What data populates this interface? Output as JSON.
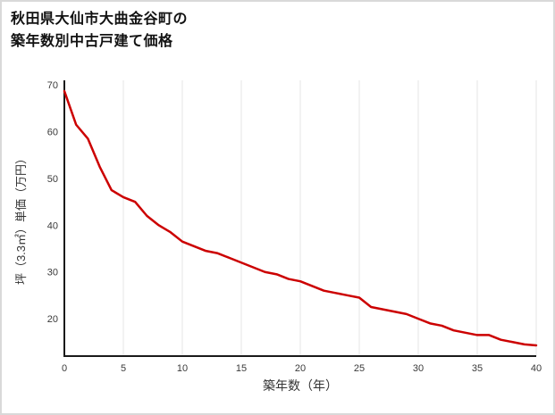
{
  "title": {
    "line1": "秋田県大仙市大曲金谷町の",
    "line2": "築年数別中古戸建て価格"
  },
  "chart_data": {
    "type": "line",
    "title": "秋田県大仙市大曲金谷町の築年数別中古戸建て価格",
    "xlabel": "築年数（年）",
    "ylabel": "坪（3.3㎡）単価（万円）",
    "x": [
      0,
      1,
      2,
      3,
      4,
      5,
      6,
      7,
      8,
      9,
      10,
      11,
      12,
      13,
      14,
      15,
      16,
      17,
      18,
      19,
      20,
      21,
      22,
      23,
      24,
      25,
      26,
      27,
      28,
      29,
      30,
      31,
      32,
      33,
      34,
      35,
      36,
      37,
      38,
      39,
      40
    ],
    "values": [
      68.7,
      61.5,
      58.5,
      52.5,
      47.5,
      46,
      45,
      42,
      40,
      38.5,
      36.5,
      35.5,
      34.5,
      34,
      33,
      32,
      31,
      30,
      29.5,
      28.5,
      28,
      27,
      26,
      25.5,
      25,
      24.5,
      22.5,
      22,
      21.5,
      21,
      20,
      19,
      18.5,
      17.5,
      17,
      16.5,
      16.5,
      15.5,
      15,
      14.5,
      14.3
    ],
    "xlim": [
      0,
      40
    ],
    "ylim": [
      12,
      71
    ],
    "x_ticks": [
      0,
      5,
      10,
      15,
      20,
      25,
      30,
      35,
      40
    ],
    "y_ticks": [
      20,
      30,
      40,
      50,
      60,
      70
    ],
    "line_color": "#cc0000",
    "grid": "vertical-only",
    "legend": "none"
  }
}
